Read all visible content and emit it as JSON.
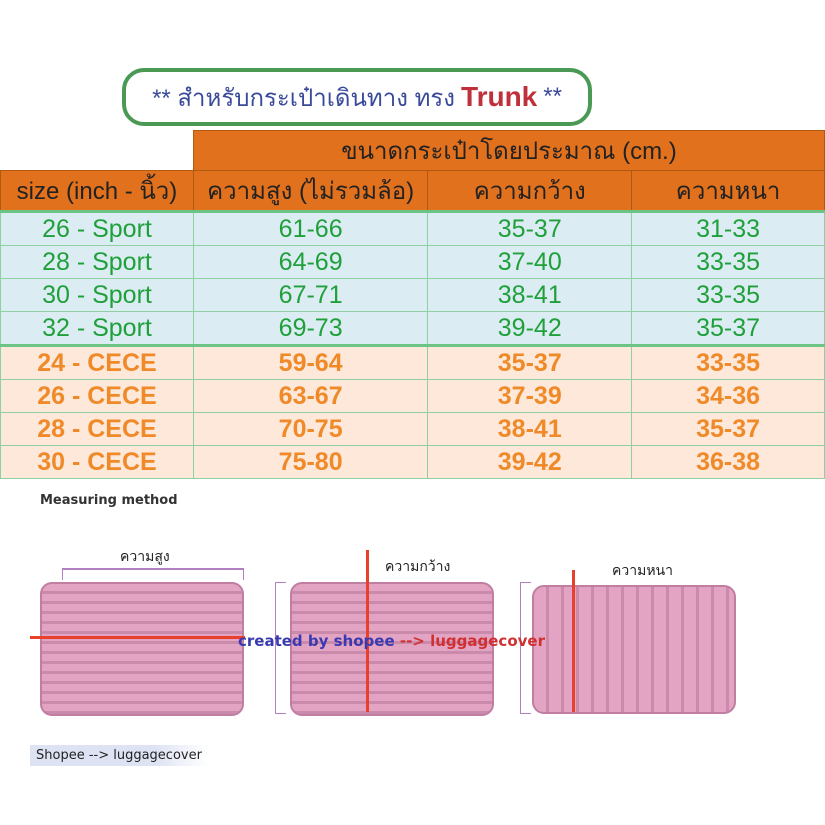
{
  "title": {
    "prefix": "** สำหรับกระเป๋าเดินทาง ทรง",
    "highlight": "Trunk",
    "suffix": "**"
  },
  "table": {
    "group_header": "ขนาดกระเป๋าโดยประมาณ (cm.)",
    "headers": [
      "size (inch - นิ้ว)",
      "ความสูง (ไม่รวมล้อ)",
      "ความกว้าง",
      "ความหนา"
    ],
    "sport_rows": [
      [
        "26 - Sport",
        "61-66",
        "35-37",
        "31-33"
      ],
      [
        "28 - Sport",
        "64-69",
        "37-40",
        "33-35"
      ],
      [
        "30 - Sport",
        "67-71",
        "38-41",
        "33-35"
      ],
      [
        "32 - Sport",
        "69-73",
        "39-42",
        "35-37"
      ]
    ],
    "cece_rows": [
      [
        "24 - CECE",
        "59-64",
        "35-37",
        "33-35"
      ],
      [
        "26 - CECE",
        "63-67",
        "37-39",
        "34-36"
      ],
      [
        "28 - CECE",
        "70-75",
        "38-41",
        "35-37"
      ],
      [
        "30 - CECE",
        "75-80",
        "39-42",
        "36-38"
      ]
    ]
  },
  "measuring": {
    "heading": "Measuring method",
    "labels": [
      "ความสูง",
      "ความกว้าง",
      "ความหนา"
    ],
    "watermark_a": "created by shopee",
    "watermark_b": "--> luggagecover",
    "footer": "Shopee --> luggagecover"
  },
  "colors": {
    "header": "#e2711d",
    "sport_text": "#1fa03a",
    "cece_text": "#f08a28",
    "trunk": "#c0303a"
  }
}
